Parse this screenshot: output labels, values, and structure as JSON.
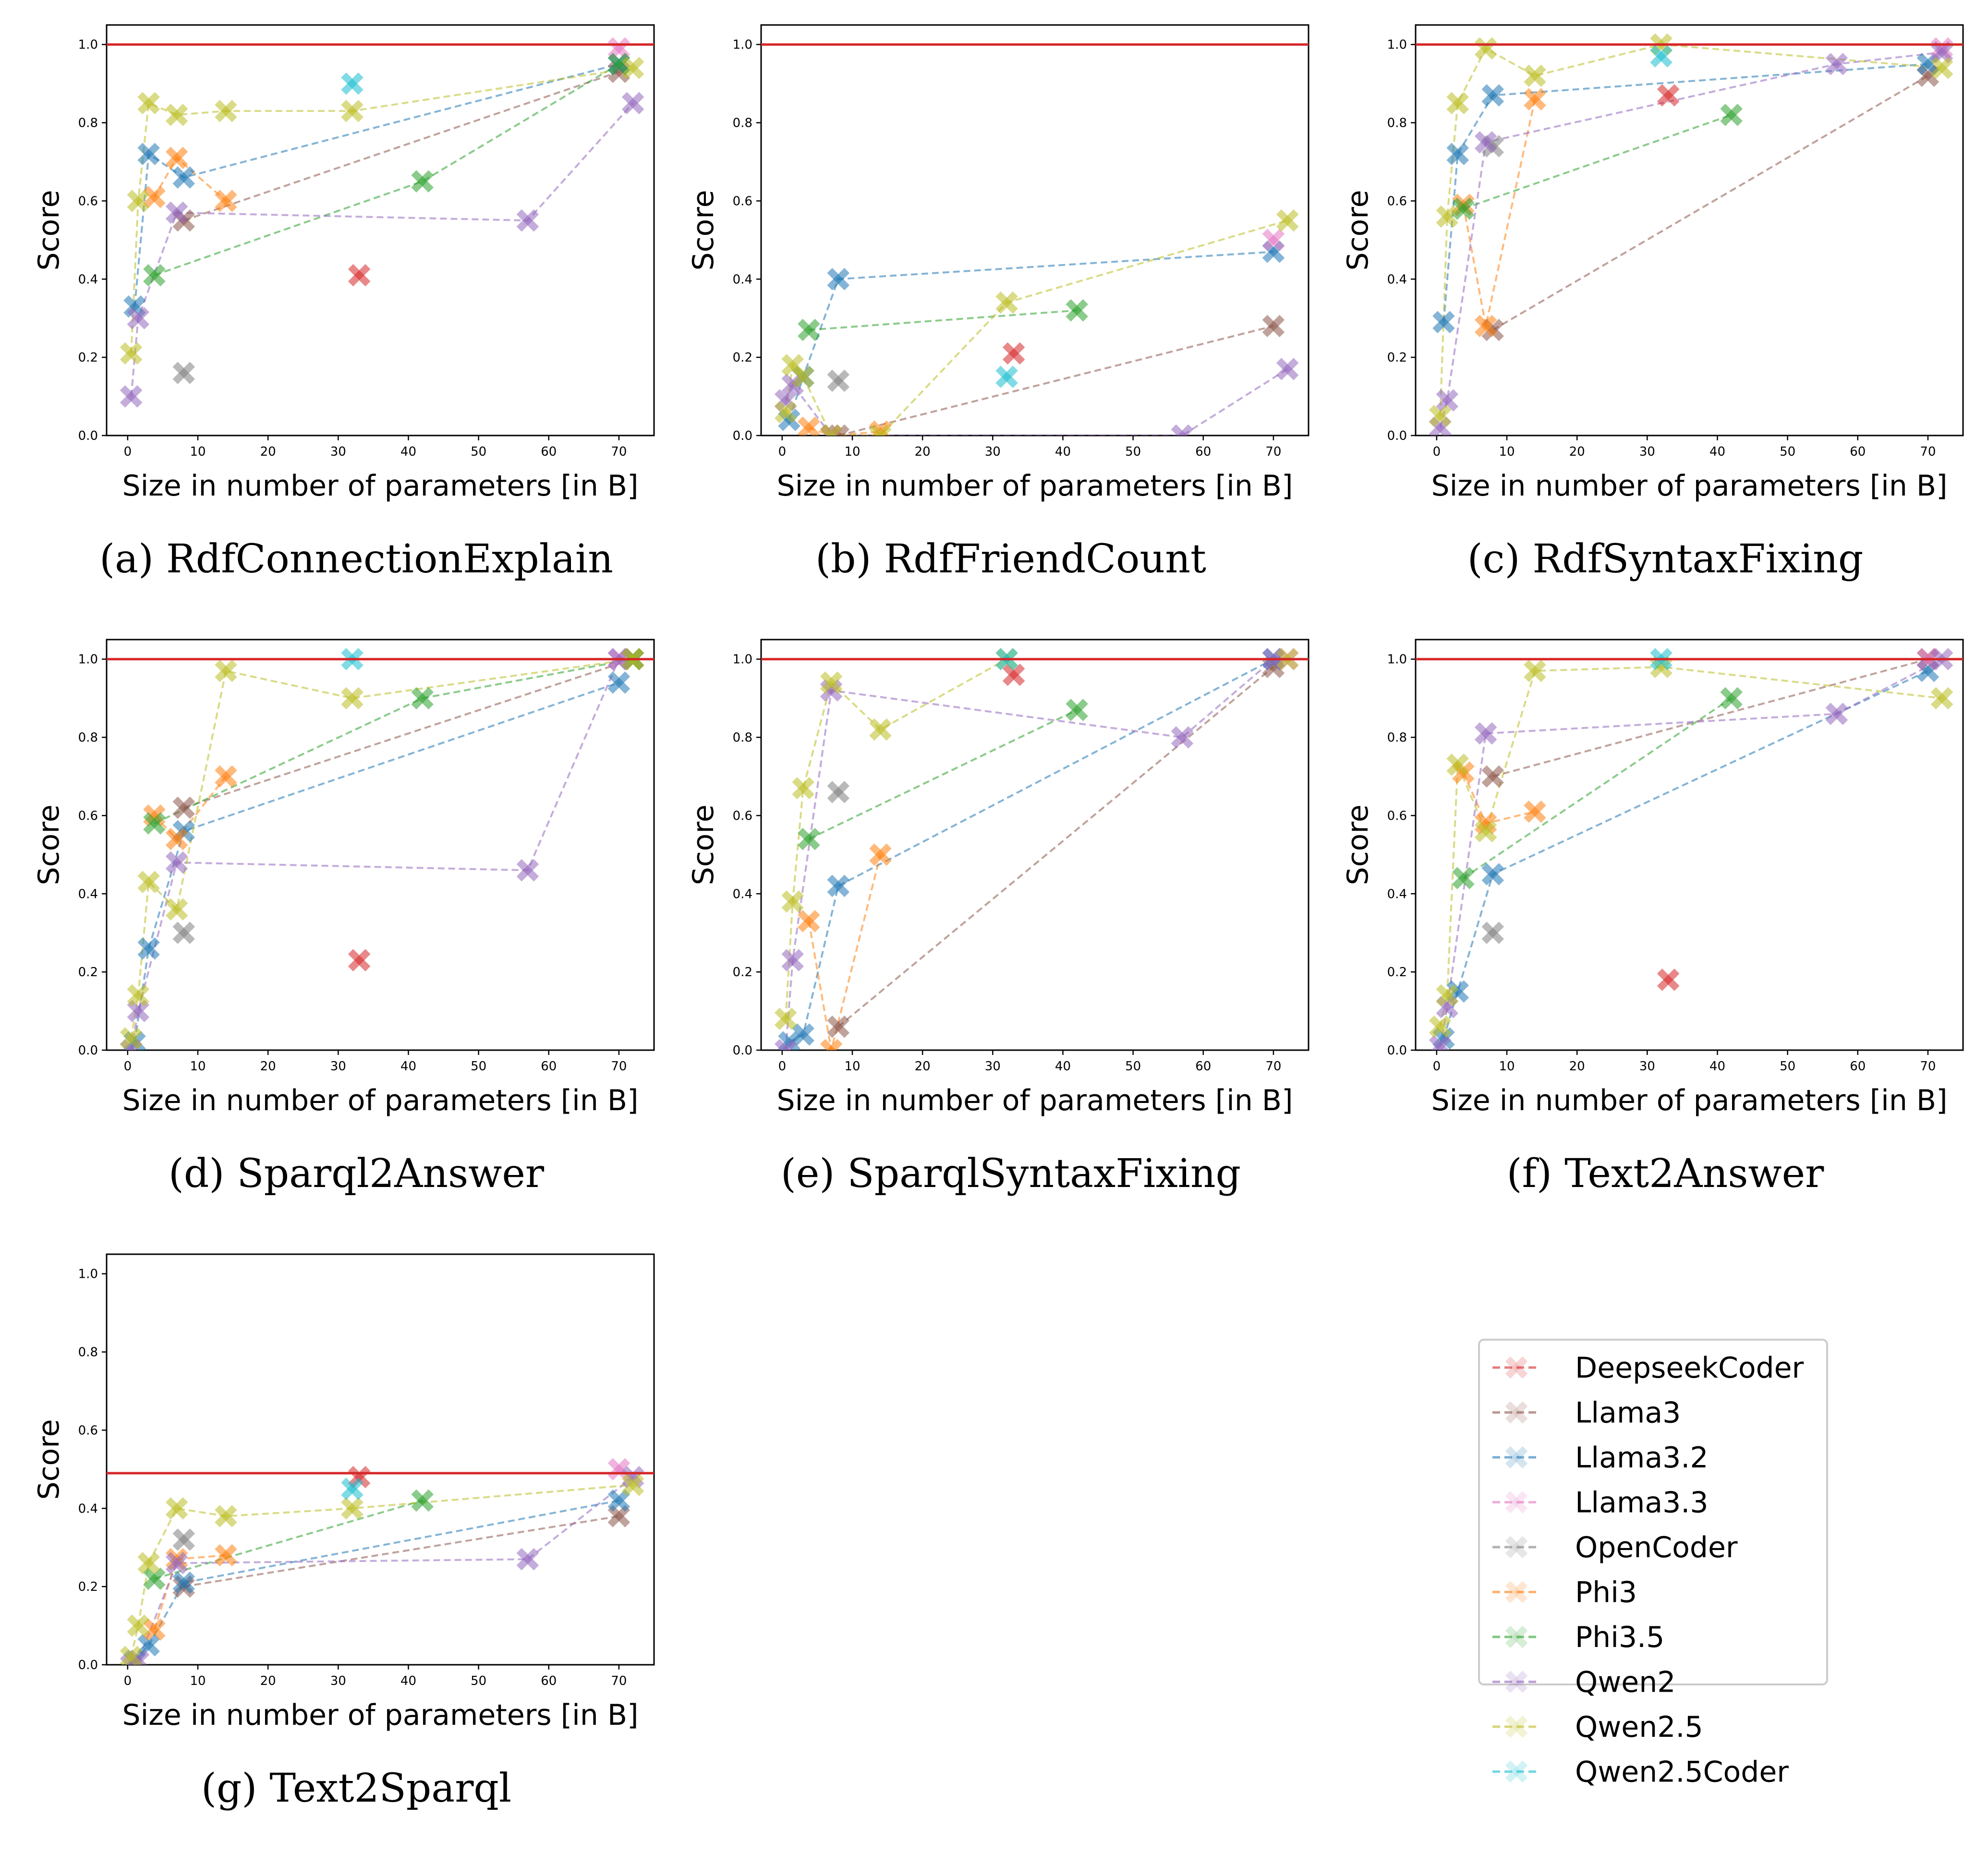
{
  "figure": {
    "series_colors": {
      "DeepseekCoder": "#d62728",
      "Llama3": "#8c564b",
      "Llama3.2": "#1f77b4",
      "Llama3.3": "#e377c2",
      "OpenCoder": "#7f7f7f",
      "Phi3": "#ff7f0e",
      "Phi3.5": "#2ca02c",
      "Qwen2": "#9467bd",
      "Qwen2.5": "#bcbd22",
      "Qwen2.5Coder": "#17becf"
    },
    "reference_line_color": "#d62728",
    "legend": {
      "entries": [
        "DeepseekCoder",
        "Llama3",
        "Llama3.2",
        "Llama3.3",
        "OpenCoder",
        "Phi3",
        "Phi3.5",
        "Qwen2",
        "Qwen2.5",
        "Qwen2.5Coder"
      ]
    }
  },
  "chart_data": [
    {
      "type": "scatter",
      "caption": "(a) RdfConnectionExplain",
      "xlabel": "Size in number of parameters [in B]",
      "ylabel": "Score",
      "xlim": [
        -3,
        75
      ],
      "ylim": [
        0,
        1.05
      ],
      "xticks": [
        "0",
        "10",
        "20",
        "30",
        "40",
        "50",
        "60",
        "70"
      ],
      "yticks": [
        "0.0",
        "0.2",
        "0.4",
        "0.6",
        "0.8",
        "1.0"
      ],
      "reference_line": 1.0,
      "series": [
        {
          "name": "DeepseekCoder",
          "x": [
            33
          ],
          "y": [
            0.41
          ]
        },
        {
          "name": "Llama3",
          "x": [
            8,
            70
          ],
          "y": [
            0.55,
            0.93
          ]
        },
        {
          "name": "Llama3.2",
          "x": [
            1,
            3,
            8,
            70
          ],
          "y": [
            0.33,
            0.72,
            0.66,
            0.95
          ]
        },
        {
          "name": "Llama3.3",
          "x": [
            70
          ],
          "y": [
            0.99
          ]
        },
        {
          "name": "OpenCoder",
          "x": [
            8
          ],
          "y": [
            0.16
          ]
        },
        {
          "name": "Phi3",
          "x": [
            3.8,
            7,
            14
          ],
          "y": [
            0.61,
            0.71,
            0.6
          ]
        },
        {
          "name": "Phi3.5",
          "x": [
            3.8,
            42,
            70
          ],
          "y": [
            0.41,
            0.65,
            0.95
          ]
        },
        {
          "name": "Qwen2",
          "x": [
            0.5,
            1.5,
            7,
            57,
            72
          ],
          "y": [
            0.1,
            0.3,
            0.57,
            0.55,
            0.85
          ]
        },
        {
          "name": "Qwen2.5",
          "x": [
            0.5,
            1.5,
            3,
            7,
            14,
            32,
            72
          ],
          "y": [
            0.21,
            0.6,
            0.85,
            0.82,
            0.83,
            0.83,
            0.94
          ]
        },
        {
          "name": "Qwen2.5Coder",
          "x": [
            32
          ],
          "y": [
            0.9
          ]
        }
      ]
    },
    {
      "type": "scatter",
      "caption": "(b) RdfFriendCount",
      "xlabel": "Size in number of parameters [in B]",
      "ylabel": "Score",
      "xlim": [
        -3,
        75
      ],
      "ylim": [
        0,
        1.05
      ],
      "xticks": [
        "0",
        "10",
        "20",
        "30",
        "40",
        "50",
        "60",
        "70"
      ],
      "yticks": [
        "0.0",
        "0.2",
        "0.4",
        "0.6",
        "0.8",
        "1.0"
      ],
      "reference_line": 1.0,
      "series": [
        {
          "name": "DeepseekCoder",
          "x": [
            33
          ],
          "y": [
            0.21
          ]
        },
        {
          "name": "Llama3",
          "x": [
            8,
            70
          ],
          "y": [
            0.0,
            0.28
          ]
        },
        {
          "name": "Llama3.2",
          "x": [
            1,
            3,
            8,
            70
          ],
          "y": [
            0.04,
            0.15,
            0.4,
            0.47
          ]
        },
        {
          "name": "Llama3.3",
          "x": [
            70
          ],
          "y": [
            0.5
          ]
        },
        {
          "name": "OpenCoder",
          "x": [
            8
          ],
          "y": [
            0.14
          ]
        },
        {
          "name": "Phi3",
          "x": [
            3.8,
            7,
            14
          ],
          "y": [
            0.02,
            0.0,
            0.01
          ]
        },
        {
          "name": "Phi3.5",
          "x": [
            3.8,
            42
          ],
          "y": [
            0.27,
            0.32
          ]
        },
        {
          "name": "Qwen2",
          "x": [
            0.5,
            1.5,
            7,
            57,
            72
          ],
          "y": [
            0.09,
            0.13,
            0.0,
            0.0,
            0.17
          ]
        },
        {
          "name": "Qwen2.5",
          "x": [
            0.5,
            1.5,
            3,
            7,
            14,
            32,
            72
          ],
          "y": [
            0.06,
            0.18,
            0.15,
            0.0,
            0.0,
            0.34,
            0.55
          ]
        },
        {
          "name": "Qwen2.5Coder",
          "x": [
            32
          ],
          "y": [
            0.15
          ]
        }
      ]
    },
    {
      "type": "scatter",
      "caption": "(c) RdfSyntaxFixing",
      "xlabel": "Size in number of parameters [in B]",
      "ylabel": "Score",
      "xlim": [
        -3,
        75
      ],
      "ylim": [
        0,
        1.05
      ],
      "xticks": [
        "0",
        "10",
        "20",
        "30",
        "40",
        "50",
        "60",
        "70"
      ],
      "yticks": [
        "0.0",
        "0.2",
        "0.4",
        "0.6",
        "0.8",
        "1.0"
      ],
      "reference_line": 1.0,
      "series": [
        {
          "name": "DeepseekCoder",
          "x": [
            33
          ],
          "y": [
            0.87
          ]
        },
        {
          "name": "Llama3",
          "x": [
            8,
            70
          ],
          "y": [
            0.27,
            0.92
          ]
        },
        {
          "name": "Llama3.2",
          "x": [
            1,
            3,
            8,
            70
          ],
          "y": [
            0.29,
            0.72,
            0.87,
            0.95
          ]
        },
        {
          "name": "Llama3.3",
          "x": [
            72
          ],
          "y": [
            0.99
          ]
        },
        {
          "name": "OpenCoder",
          "x": [
            8
          ],
          "y": [
            0.74
          ]
        },
        {
          "name": "Phi3",
          "x": [
            3.8,
            7,
            14
          ],
          "y": [
            0.59,
            0.28,
            0.86
          ]
        },
        {
          "name": "Phi3.5",
          "x": [
            3.8,
            42
          ],
          "y": [
            0.58,
            0.82
          ]
        },
        {
          "name": "Qwen2",
          "x": [
            0.5,
            1.5,
            7,
            57,
            72
          ],
          "y": [
            0.02,
            0.09,
            0.75,
            0.95,
            0.98
          ]
        },
        {
          "name": "Qwen2.5",
          "x": [
            0.5,
            1.5,
            3,
            7,
            14,
            32,
            72
          ],
          "y": [
            0.05,
            0.56,
            0.85,
            0.99,
            0.92,
            1.0,
            0.94
          ]
        },
        {
          "name": "Qwen2.5Coder",
          "x": [
            32
          ],
          "y": [
            0.97
          ]
        }
      ]
    },
    {
      "type": "scatter",
      "caption": "(d) Sparql2Answer",
      "xlabel": "Size in number of parameters [in B]",
      "ylabel": "Score",
      "xlim": [
        -3,
        75
      ],
      "ylim": [
        0,
        1.05
      ],
      "xticks": [
        "0",
        "10",
        "20",
        "30",
        "40",
        "50",
        "60",
        "70"
      ],
      "yticks": [
        "0.0",
        "0.2",
        "0.4",
        "0.6",
        "0.8",
        "1.0"
      ],
      "reference_line": 1.0,
      "series": [
        {
          "name": "DeepseekCoder",
          "x": [
            33
          ],
          "y": [
            0.23
          ]
        },
        {
          "name": "Llama3",
          "x": [
            8,
            72
          ],
          "y": [
            0.62,
            1.0
          ]
        },
        {
          "name": "Llama3.2",
          "x": [
            1,
            3,
            8,
            70
          ],
          "y": [
            0.02,
            0.26,
            0.56,
            0.94
          ]
        },
        {
          "name": "Llama3.3",
          "x": [
            70
          ],
          "y": [
            1.0
          ]
        },
        {
          "name": "OpenCoder",
          "x": [
            8
          ],
          "y": [
            0.3
          ]
        },
        {
          "name": "Phi3",
          "x": [
            3.8,
            7,
            14
          ],
          "y": [
            0.6,
            0.54,
            0.7
          ]
        },
        {
          "name": "Phi3.5",
          "x": [
            3.8,
            42,
            72
          ],
          "y": [
            0.58,
            0.9,
            1.0
          ]
        },
        {
          "name": "Qwen2",
          "x": [
            0.5,
            1.5,
            7,
            57,
            70
          ],
          "y": [
            0.0,
            0.1,
            0.48,
            0.46,
            1.0
          ]
        },
        {
          "name": "Qwen2.5",
          "x": [
            0.5,
            1.5,
            3,
            7,
            14,
            32,
            72
          ],
          "y": [
            0.03,
            0.14,
            0.43,
            0.36,
            0.97,
            0.9,
            1.0
          ]
        },
        {
          "name": "Qwen2.5Coder",
          "x": [
            32
          ],
          "y": [
            1.0
          ]
        }
      ]
    },
    {
      "type": "scatter",
      "caption": "(e) SparqlSyntaxFixing",
      "xlabel": "Size in number of parameters [in B]",
      "ylabel": "Score",
      "xlim": [
        -3,
        75
      ],
      "ylim": [
        0,
        1.05
      ],
      "xticks": [
        "0",
        "10",
        "20",
        "30",
        "40",
        "50",
        "60",
        "70"
      ],
      "yticks": [
        "0.0",
        "0.2",
        "0.4",
        "0.6",
        "0.8",
        "1.0"
      ],
      "reference_line": 1.0,
      "series": [
        {
          "name": "DeepseekCoder",
          "x": [
            33
          ],
          "y": [
            0.96
          ]
        },
        {
          "name": "Llama3",
          "x": [
            8,
            70
          ],
          "y": [
            0.06,
            0.98
          ]
        },
        {
          "name": "Llama3.2",
          "x": [
            1,
            3,
            8,
            70
          ],
          "y": [
            0.02,
            0.04,
            0.42,
            1.0
          ]
        },
        {
          "name": "Llama3.3",
          "x": [
            72
          ],
          "y": [
            1.0
          ]
        },
        {
          "name": "OpenCoder",
          "x": [
            8
          ],
          "y": [
            0.66
          ]
        },
        {
          "name": "Phi3",
          "x": [
            3.8,
            7,
            14
          ],
          "y": [
            0.33,
            0.0,
            0.5
          ]
        },
        {
          "name": "Phi3.5",
          "x": [
            3.8,
            42
          ],
          "y": [
            0.54,
            0.87
          ]
        },
        {
          "name": "Qwen2",
          "x": [
            0.5,
            1.5,
            7,
            57,
            70
          ],
          "y": [
            0.0,
            0.23,
            0.92,
            0.8,
            1.0
          ]
        },
        {
          "name": "Qwen2.5",
          "x": [
            0.5,
            1.5,
            3,
            7,
            14,
            32,
            72
          ],
          "y": [
            0.08,
            0.38,
            0.67,
            0.94,
            0.82,
            1.0,
            1.0
          ]
        },
        {
          "name": "Qwen2.5Coder",
          "x": [
            32
          ],
          "y": [
            1.0
          ]
        }
      ]
    },
    {
      "type": "scatter",
      "caption": "(f) Text2Answer",
      "xlabel": "Size in number of parameters [in B]",
      "ylabel": "Score",
      "xlim": [
        -3,
        75
      ],
      "ylim": [
        0,
        1.05
      ],
      "xticks": [
        "0",
        "10",
        "20",
        "30",
        "40",
        "50",
        "60",
        "70"
      ],
      "yticks": [
        "0.0",
        "0.2",
        "0.4",
        "0.6",
        "0.8",
        "1.0"
      ],
      "reference_line": 1.0,
      "series": [
        {
          "name": "DeepseekCoder",
          "x": [
            33
          ],
          "y": [
            0.18
          ]
        },
        {
          "name": "Llama3",
          "x": [
            8,
            70
          ],
          "y": [
            0.7,
            1.0
          ]
        },
        {
          "name": "Llama3.2",
          "x": [
            1,
            3,
            8,
            70
          ],
          "y": [
            0.03,
            0.15,
            0.45,
            0.97
          ]
        },
        {
          "name": "Llama3.3",
          "x": [
            70
          ],
          "y": [
            1.0
          ]
        },
        {
          "name": "OpenCoder",
          "x": [
            8
          ],
          "y": [
            0.3
          ]
        },
        {
          "name": "Phi3",
          "x": [
            3.8,
            7,
            14
          ],
          "y": [
            0.71,
            0.58,
            0.61
          ]
        },
        {
          "name": "Phi3.5",
          "x": [
            3.8,
            42
          ],
          "y": [
            0.44,
            0.9
          ]
        },
        {
          "name": "Qwen2",
          "x": [
            0.5,
            1.5,
            7,
            57,
            72
          ],
          "y": [
            0.01,
            0.11,
            0.81,
            0.86,
            1.0
          ]
        },
        {
          "name": "Qwen2.5",
          "x": [
            0.5,
            1.5,
            3,
            7,
            14,
            32,
            72
          ],
          "y": [
            0.06,
            0.14,
            0.73,
            0.56,
            0.97,
            0.98,
            0.9
          ]
        },
        {
          "name": "Qwen2.5Coder",
          "x": [
            32
          ],
          "y": [
            1.0
          ]
        }
      ]
    },
    {
      "type": "scatter",
      "caption": "(g) Text2Sparql",
      "xlabel": "Size in number of parameters [in B]",
      "ylabel": "Score",
      "xlim": [
        -3,
        75
      ],
      "ylim": [
        0,
        1.05
      ],
      "xticks": [
        "0",
        "10",
        "20",
        "30",
        "40",
        "50",
        "60",
        "70"
      ],
      "yticks": [
        "0.0",
        "0.2",
        "0.4",
        "0.6",
        "0.8",
        "1.0"
      ],
      "reference_line": 0.49,
      "series": [
        {
          "name": "DeepseekCoder",
          "x": [
            33
          ],
          "y": [
            0.48
          ]
        },
        {
          "name": "Llama3",
          "x": [
            8,
            70
          ],
          "y": [
            0.2,
            0.38
          ]
        },
        {
          "name": "Llama3.2",
          "x": [
            1,
            3,
            8,
            70
          ],
          "y": [
            0.01,
            0.05,
            0.21,
            0.42
          ]
        },
        {
          "name": "Llama3.3",
          "x": [
            70
          ],
          "y": [
            0.5
          ]
        },
        {
          "name": "OpenCoder",
          "x": [
            8
          ],
          "y": [
            0.32
          ]
        },
        {
          "name": "Phi3",
          "x": [
            3.8,
            7,
            14
          ],
          "y": [
            0.09,
            0.27,
            0.28
          ]
        },
        {
          "name": "Phi3.5",
          "x": [
            3.8,
            42
          ],
          "y": [
            0.22,
            0.42
          ]
        },
        {
          "name": "Qwen2",
          "x": [
            0.5,
            1.5,
            7,
            57,
            72
          ],
          "y": [
            0.0,
            0.01,
            0.26,
            0.27,
            0.48
          ]
        },
        {
          "name": "Qwen2.5",
          "x": [
            0.5,
            1.5,
            3,
            7,
            14,
            32,
            72
          ],
          "y": [
            0.02,
            0.1,
            0.26,
            0.4,
            0.38,
            0.4,
            0.46
          ]
        },
        {
          "name": "Qwen2.5Coder",
          "x": [
            32
          ],
          "y": [
            0.45
          ]
        }
      ]
    }
  ]
}
